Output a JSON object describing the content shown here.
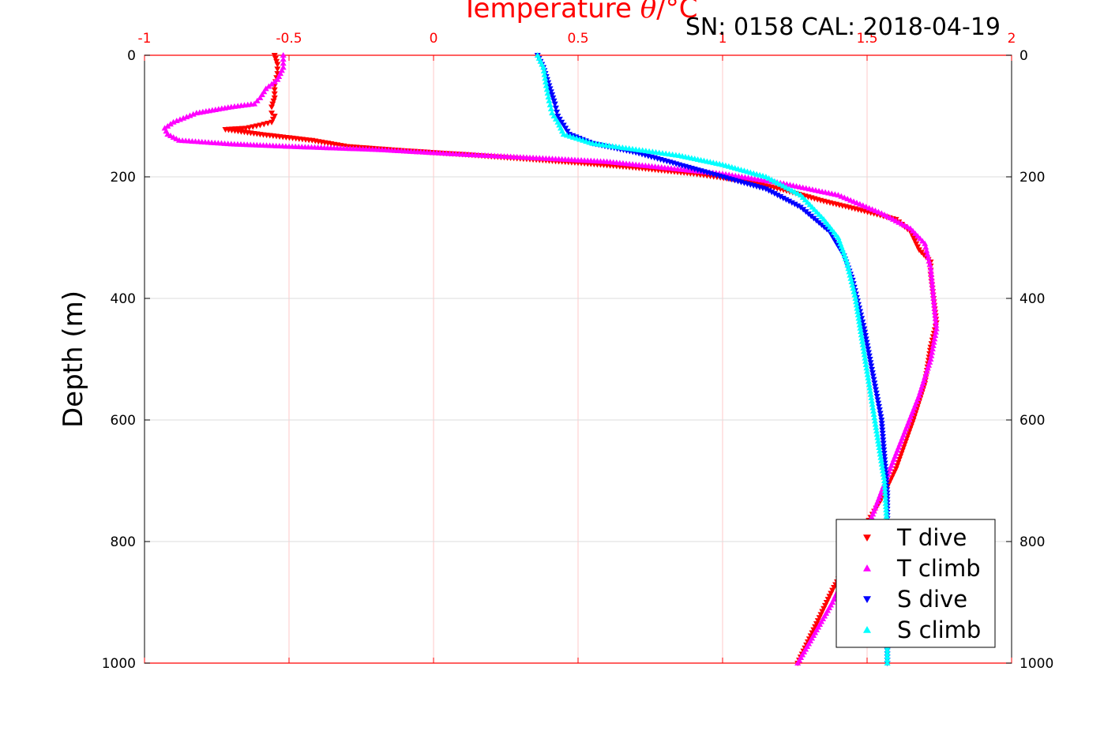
{
  "header": {
    "sn_cal": "SN: 0158  CAL: 2018-04-19"
  },
  "chart_data": {
    "type": "scatter",
    "title_prefix": "Temperature ",
    "title_symbol": "θ",
    "title_suffix": "/°C",
    "xlabel_top": "Temperature θ/°C",
    "ylabel": "Depth (m)",
    "xlim": [
      -1,
      2
    ],
    "ylim": [
      1000,
      0
    ],
    "y_reversed": true,
    "x_ticks": [
      -1,
      -0.5,
      0,
      0.5,
      1,
      1.5,
      2
    ],
    "x_tick_labels": [
      "-1",
      "-0.5",
      "0",
      "0.5",
      "1",
      "1.5",
      "2"
    ],
    "y_ticks": [
      0,
      200,
      400,
      600,
      800,
      1000
    ],
    "y_tick_labels": [
      "0",
      "200",
      "400",
      "600",
      "800",
      "1000"
    ],
    "grid": true,
    "legend_position": "bottom-right",
    "colors": {
      "axis_top": "#ff0000",
      "grid_x": "#ffc8c8",
      "grid_y": "#dcdcdc",
      "t_dive": "#ff0000",
      "t_climb": "#ff00ff",
      "s_dive": "#0000ff",
      "s_climb": "#00ffff"
    },
    "series": [
      {
        "name": "T dive",
        "marker": "triangle-down",
        "color": "#ff0000",
        "x": [
          -0.55,
          -0.54,
          -0.54,
          -0.55,
          -0.55,
          -0.56,
          -0.56,
          -0.55,
          -0.56,
          -0.6,
          -0.65,
          -0.72,
          -0.6,
          -0.42,
          -0.3,
          -0.1,
          0.1,
          0.3,
          0.5,
          0.7,
          0.9,
          1.05,
          1.2,
          1.35,
          1.48,
          1.6,
          1.65,
          1.68,
          1.72,
          1.72,
          1.73,
          1.74,
          1.72,
          1.7,
          1.66,
          1.6,
          1.55,
          1.5,
          1.45,
          1.38,
          1.32,
          1.26
        ],
        "y": [
          0,
          15,
          30,
          50,
          70,
          85,
          95,
          100,
          110,
          115,
          120,
          122,
          130,
          140,
          150,
          157,
          163,
          170,
          177,
          185,
          195,
          205,
          220,
          240,
          255,
          270,
          290,
          320,
          340,
          360,
          400,
          440,
          480,
          540,
          600,
          680,
          730,
          770,
          820,
          880,
          940,
          1000
        ]
      },
      {
        "name": "T climb",
        "marker": "triangle-up",
        "color": "#ff00ff",
        "x": [
          -0.52,
          -0.52,
          -0.54,
          -0.58,
          -0.6,
          -0.62,
          -0.7,
          -0.82,
          -0.9,
          -0.93,
          -0.92,
          -0.88,
          -0.7,
          -0.5,
          -0.2,
          0.1,
          0.4,
          0.6,
          0.8,
          1.0,
          1.2,
          1.4,
          1.55,
          1.65,
          1.7,
          1.72,
          1.73,
          1.74,
          1.72,
          1.68,
          1.63,
          1.58,
          1.54,
          1.5,
          1.44,
          1.38,
          1.32,
          1.26
        ],
        "y": [
          0,
          20,
          40,
          55,
          70,
          80,
          85,
          95,
          110,
          120,
          130,
          140,
          146,
          150,
          155,
          163,
          170,
          175,
          185,
          195,
          210,
          230,
          260,
          285,
          310,
          350,
          400,
          450,
          500,
          560,
          620,
          680,
          730,
          780,
          840,
          900,
          950,
          1000
        ]
      },
      {
        "name": "S dive",
        "marker": "triangle-down",
        "color": "#0000ff",
        "x": [
          0.36,
          0.38,
          0.4,
          0.42,
          0.43,
          0.45,
          0.47,
          0.55,
          0.7,
          0.85,
          1.0,
          1.15,
          1.27,
          1.37,
          1.42,
          1.45,
          1.47,
          1.49,
          1.51,
          1.53,
          1.55,
          1.56,
          1.57,
          1.57,
          1.57,
          1.57
        ],
        "y": [
          0,
          20,
          50,
          80,
          100,
          115,
          130,
          145,
          160,
          180,
          200,
          220,
          250,
          290,
          330,
          370,
          410,
          450,
          500,
          550,
          600,
          660,
          720,
          800,
          900,
          1000
        ]
      },
      {
        "name": "S climb",
        "marker": "triangle-up",
        "color": "#00ffff",
        "x": [
          0.36,
          0.38,
          0.39,
          0.4,
          0.41,
          0.43,
          0.45,
          0.55,
          0.7,
          0.85,
          1.0,
          1.15,
          1.27,
          1.35,
          1.4,
          1.43,
          1.46,
          1.48,
          1.5,
          1.52,
          1.54,
          1.56,
          1.57,
          1.57,
          1.57
        ],
        "y": [
          0,
          20,
          50,
          75,
          95,
          110,
          130,
          145,
          155,
          165,
          180,
          200,
          230,
          270,
          300,
          340,
          400,
          460,
          520,
          580,
          640,
          700,
          780,
          880,
          1000
        ]
      }
    ]
  }
}
